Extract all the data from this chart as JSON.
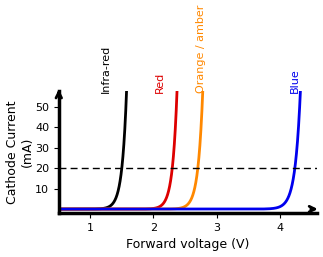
{
  "xlabel": "Forward voltage (V)",
  "ylabel": "Cathode Current\n(mA)",
  "xlim": [
    0.5,
    4.6
  ],
  "ylim": [
    -2,
    58
  ],
  "yticks": [
    10,
    20,
    30,
    40,
    50
  ],
  "xticks": [
    1,
    2,
    3,
    4
  ],
  "hline_y": 20,
  "curves": [
    {
      "label": "Infra-red",
      "color": "#000000",
      "v_threshold": 0.82,
      "scale": 0.0015,
      "exponent": 14.0,
      "x_label": 1.25,
      "y_label": 57,
      "rotation": 90
    },
    {
      "label": "Red",
      "color": "#dd0000",
      "v_threshold": 1.62,
      "scale": 0.0015,
      "exponent": 14.0,
      "x_label": 2.1,
      "y_label": 57,
      "rotation": 90
    },
    {
      "label": "Orange / amber",
      "color": "#ff8800",
      "v_threshold": 2.0,
      "scale": 0.0015,
      "exponent": 13.5,
      "x_label": 2.75,
      "y_label": 57,
      "rotation": 90
    },
    {
      "label": "Blue",
      "color": "#0000ee",
      "v_threshold": 3.45,
      "scale": 0.0015,
      "exponent": 12.0,
      "x_label": 4.25,
      "y_label": 57,
      "rotation": 90
    }
  ],
  "background_color": "#ffffff",
  "axis_color": "#000000",
  "fontsize_labels": 9,
  "fontsize_ticks": 8,
  "fontsize_curve_labels": 8,
  "linewidth": 2.0
}
